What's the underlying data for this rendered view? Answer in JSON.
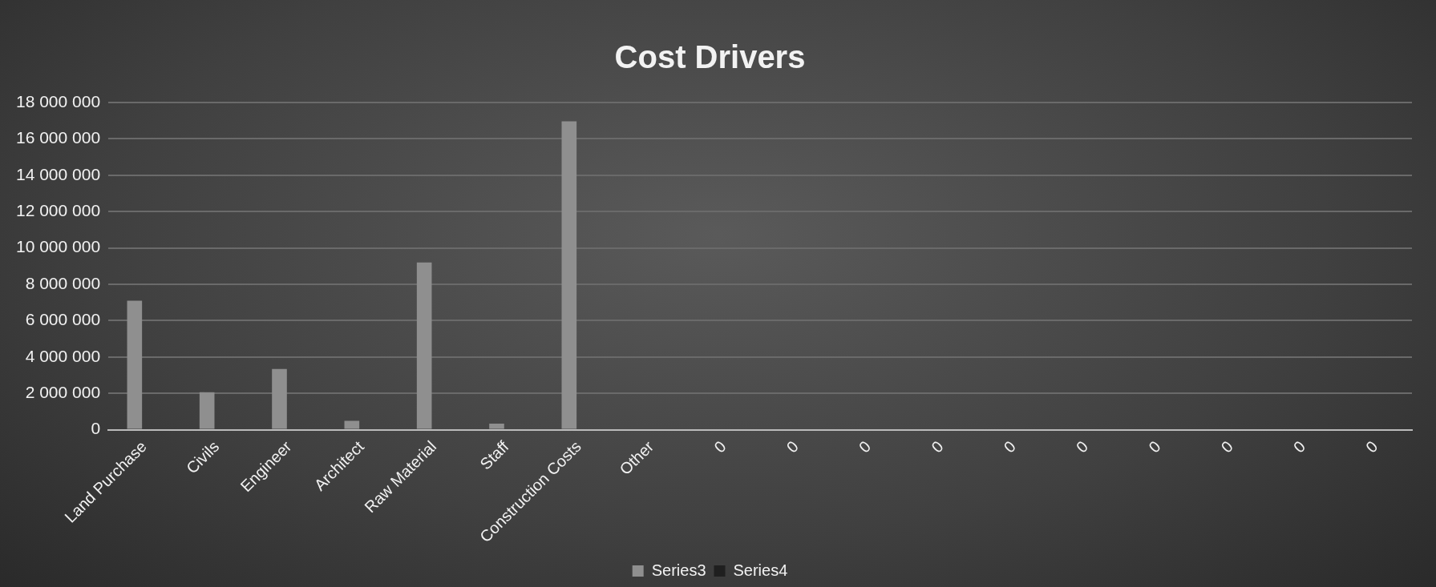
{
  "chart_data": {
    "type": "bar",
    "title": "Cost Drivers",
    "categories": [
      "Land Purchase",
      "Civils",
      "Engineer",
      "Architect",
      "Raw Material",
      "Staff",
      "Construction Costs",
      "Other",
      "0",
      "0",
      "0",
      "0",
      "0",
      "0",
      "0",
      "0",
      "0",
      "0"
    ],
    "series": [
      {
        "name": "Series3",
        "color": "#8f8f8f",
        "values": [
          7100000,
          2060000,
          3340000,
          490000,
          9200000,
          330000,
          16970000,
          0,
          0,
          0,
          0,
          0,
          0,
          0,
          0,
          0,
          0,
          0
        ]
      },
      {
        "name": "Series4",
        "color": "#1f1f1f",
        "values": [
          0,
          0,
          0,
          0,
          0,
          0,
          0,
          0,
          0,
          0,
          0,
          0,
          0,
          0,
          0,
          0,
          0,
          0
        ]
      }
    ],
    "ylim": [
      0,
      18000000
    ],
    "yticks": [
      {
        "value": 0,
        "label": "0"
      },
      {
        "value": 2000000,
        "label": "2 000 000"
      },
      {
        "value": 4000000,
        "label": "4 000 000"
      },
      {
        "value": 6000000,
        "label": "6 000 000"
      },
      {
        "value": 8000000,
        "label": "8 000 000"
      },
      {
        "value": 10000000,
        "label": "10 000 000"
      },
      {
        "value": 12000000,
        "label": "12 000 000"
      },
      {
        "value": 14000000,
        "label": "14 000 000"
      },
      {
        "value": 16000000,
        "label": "16 000 000"
      },
      {
        "value": 18000000,
        "label": "18 000 000"
      }
    ],
    "grid": "y",
    "legend": "bottom"
  }
}
